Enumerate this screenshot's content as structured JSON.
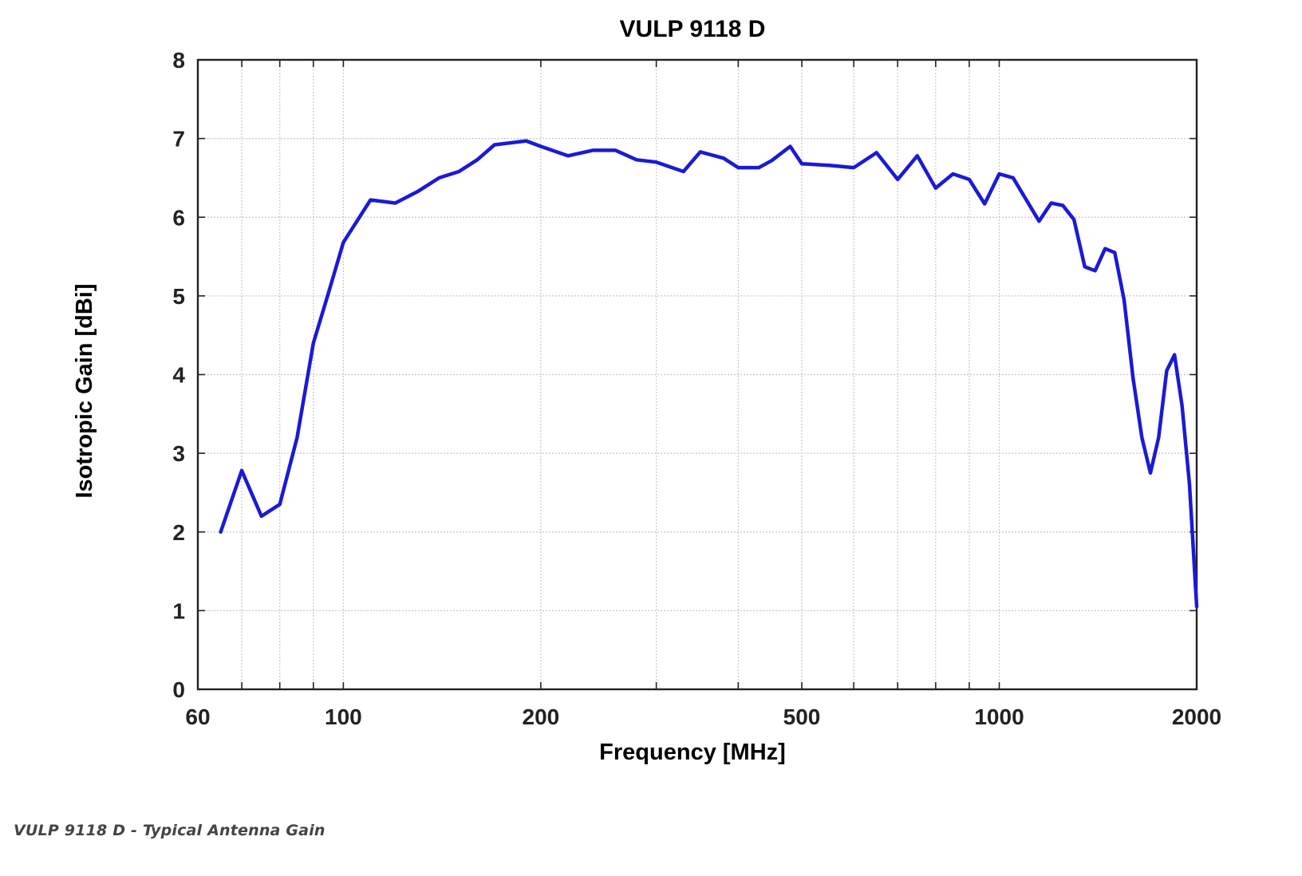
{
  "caption": "VULP 9118 D - Typical Antenna Gain",
  "colors": {
    "line": "#1a1ad6",
    "grid": "#c8c8c8",
    "axis": "#222222",
    "text": "#222222"
  },
  "chart_data": {
    "type": "line",
    "title": "VULP 9118 D",
    "xlabel": "Frequency [MHz]",
    "ylabel": "Isotropic Gain [dBi]",
    "xscale": "log",
    "xlim": [
      60,
      2000
    ],
    "ylim": [
      0,
      8
    ],
    "xticks": [
      60,
      100,
      200,
      500,
      1000,
      2000
    ],
    "xtick_labels": [
      "60",
      "100",
      "200",
      "500",
      "1000",
      "2000"
    ],
    "xgrid_minor": [
      70,
      80,
      90,
      300,
      400,
      600,
      700,
      800,
      900
    ],
    "yticks": [
      0,
      1,
      2,
      3,
      4,
      5,
      6,
      7,
      8
    ],
    "ytick_labels": [
      "0",
      "1",
      "2",
      "3",
      "4",
      "5",
      "6",
      "7",
      "8"
    ],
    "grid": true,
    "legend": "none",
    "series": [
      {
        "x": [
          65,
          70,
          75,
          80,
          85,
          90,
          95,
          100,
          110,
          120,
          130,
          140,
          150,
          160,
          170,
          190,
          200,
          220,
          240,
          260,
          280,
          300,
          330,
          350,
          380,
          400,
          430,
          450,
          480,
          500,
          550,
          600,
          650,
          700,
          750,
          800,
          850,
          900,
          950,
          1000,
          1050,
          1100,
          1150,
          1200,
          1250,
          1300,
          1350,
          1400,
          1450,
          1500,
          1550,
          1600,
          1650,
          1700,
          1750,
          1800,
          1850,
          1900,
          1950,
          2000
        ],
        "values": [
          2.0,
          2.78,
          2.2,
          2.35,
          3.2,
          4.4,
          5.05,
          5.68,
          6.22,
          6.18,
          6.33,
          6.5,
          6.58,
          6.73,
          6.92,
          6.97,
          6.9,
          6.78,
          6.85,
          6.85,
          6.73,
          6.7,
          6.58,
          6.83,
          6.75,
          6.63,
          6.63,
          6.72,
          6.9,
          6.68,
          6.66,
          6.63,
          6.82,
          6.48,
          6.78,
          6.37,
          6.55,
          6.48,
          6.17,
          6.55,
          6.5,
          6.22,
          5.95,
          6.18,
          6.15,
          5.97,
          5.37,
          5.32,
          5.6,
          5.55,
          4.95,
          3.95,
          3.2,
          2.75,
          3.2,
          4.05,
          4.25,
          3.6,
          2.6,
          1.05
        ]
      }
    ]
  }
}
